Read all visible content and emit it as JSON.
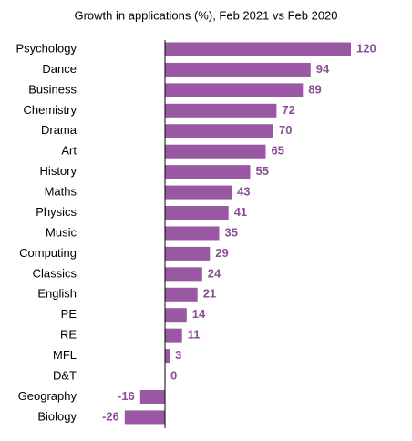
{
  "chart_data": {
    "type": "bar",
    "orientation": "horizontal",
    "title": "Growth in applications (%), Feb 2021 vs Feb 2020",
    "categories": [
      "Psychology",
      "Dance",
      "Business",
      "Chemistry",
      "Drama",
      "Art",
      "History",
      "Maths",
      "Physics",
      "Music",
      "Computing",
      "Classics",
      "English",
      "PE",
      "RE",
      "MFL",
      "D&T",
      "Geography",
      "Biology"
    ],
    "values": [
      120,
      94,
      89,
      72,
      70,
      65,
      55,
      43,
      41,
      35,
      29,
      24,
      21,
      14,
      11,
      3,
      0,
      -16,
      -26
    ],
    "color": "#9a58a4",
    "xlim": [
      -40,
      130
    ]
  }
}
